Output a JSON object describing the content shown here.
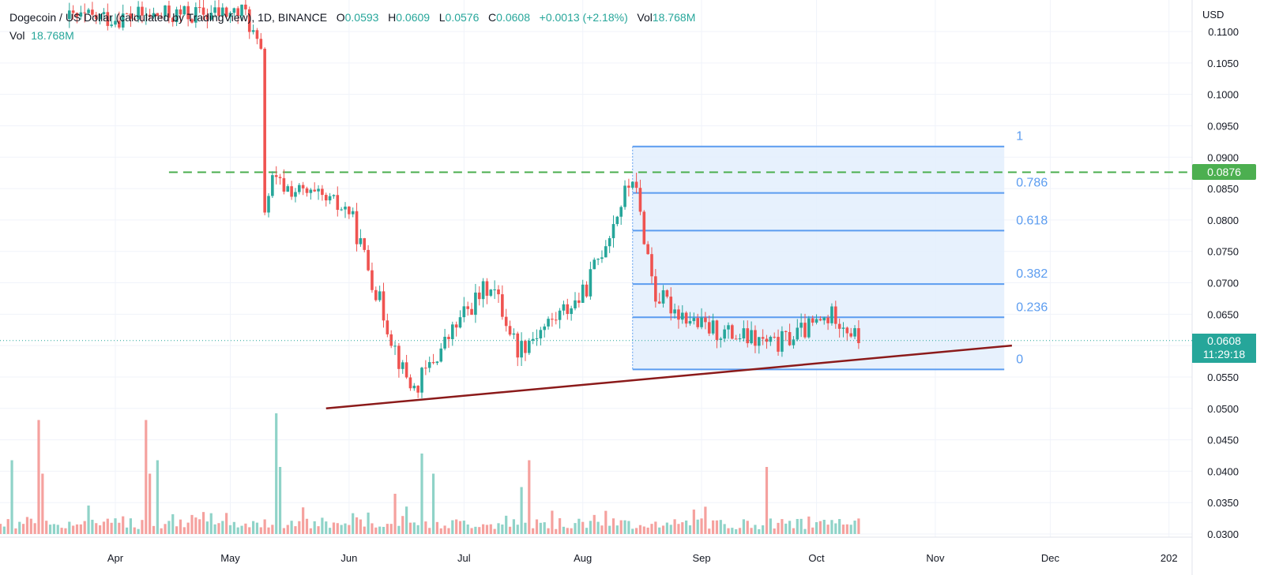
{
  "header": {
    "symbol": "Dogecoin / US Dollar (calculated by TradingView)",
    "interval": "1D",
    "exchange": "BINANCE",
    "o_label": "O",
    "o_value": "0.0593",
    "h_label": "H",
    "h_value": "0.0609",
    "l_label": "L",
    "l_value": "0.0576",
    "c_label": "C",
    "c_value": "0.0608",
    "change": "+0.0013 (+2.18%)",
    "vol_label": "Vol",
    "vol_value": "18.768M"
  },
  "volume_legend": {
    "label": "Vol",
    "value": "18.768M"
  },
  "currency": "USD",
  "price_markers": {
    "horizontal_line": {
      "value": 0.0876,
      "label": "0.0876",
      "color": "#4caf50"
    },
    "last_price": {
      "value": 0.0608,
      "label": "0.0608",
      "countdown": "11:29:18",
      "color": "#26a69a"
    }
  },
  "colors": {
    "up": "#26a69a",
    "down": "#ef5350",
    "up_volume": "#8fd3c8",
    "down_volume": "#f5a19e",
    "fib": "#5b9cf0",
    "fib_fill": "#e3effd",
    "trendline": "#8b1a1a"
  },
  "fib_levels": [
    {
      "label": "1",
      "value": 0.0917
    },
    {
      "label": "0.786",
      "value": 0.0843
    },
    {
      "label": "0.618",
      "value": 0.0783
    },
    {
      "label": "0.382",
      "value": 0.0698
    },
    {
      "label": "0.236",
      "value": 0.0645
    },
    {
      "label": "0",
      "value": 0.0562
    }
  ],
  "trendline": {
    "start": {
      "date": "May 26",
      "value": 0.05
    },
    "end": {
      "date": "Nov 21",
      "value": 0.06
    }
  },
  "chart_data": {
    "type": "candlestick",
    "y_axis": {
      "min": 0.0285,
      "max": 0.1125,
      "ticks": [
        "0.1100",
        "0.1050",
        "0.1000",
        "0.0950",
        "0.0900",
        "0.0850",
        "0.0800",
        "0.0750",
        "0.0700",
        "0.0650",
        "0.0600",
        "0.0550",
        "0.0500",
        "0.0450",
        "0.0400",
        "0.0350",
        "0.0300"
      ]
    },
    "x_axis": {
      "ticks": [
        "Apr",
        "May",
        "Jun",
        "Jul",
        "Aug",
        "Sep",
        "Oct",
        "Nov",
        "Dec",
        "202"
      ]
    },
    "grid": true,
    "ohlc_sample": [
      {
        "date": "May 10",
        "close": 0.082
      },
      {
        "date": "May 12",
        "close": 0.086
      },
      {
        "date": "Jun 1",
        "close": 0.0815
      },
      {
        "date": "Jun 15",
        "close": 0.056
      },
      {
        "date": "Jun 18",
        "close": 0.053
      },
      {
        "date": "Jul 1",
        "close": 0.065
      },
      {
        "date": "Jul 8",
        "close": 0.07
      },
      {
        "date": "Jul 15",
        "close": 0.0595
      },
      {
        "date": "Aug 1",
        "close": 0.068
      },
      {
        "date": "Aug 14",
        "close": 0.087
      },
      {
        "date": "Aug 20",
        "close": 0.068
      },
      {
        "date": "Sep 1",
        "close": 0.063
      },
      {
        "date": "Sep 20",
        "close": 0.06
      },
      {
        "date": "Oct 6",
        "close": 0.065
      },
      {
        "date": "Oct 12",
        "close": 0.0608
      }
    ]
  }
}
